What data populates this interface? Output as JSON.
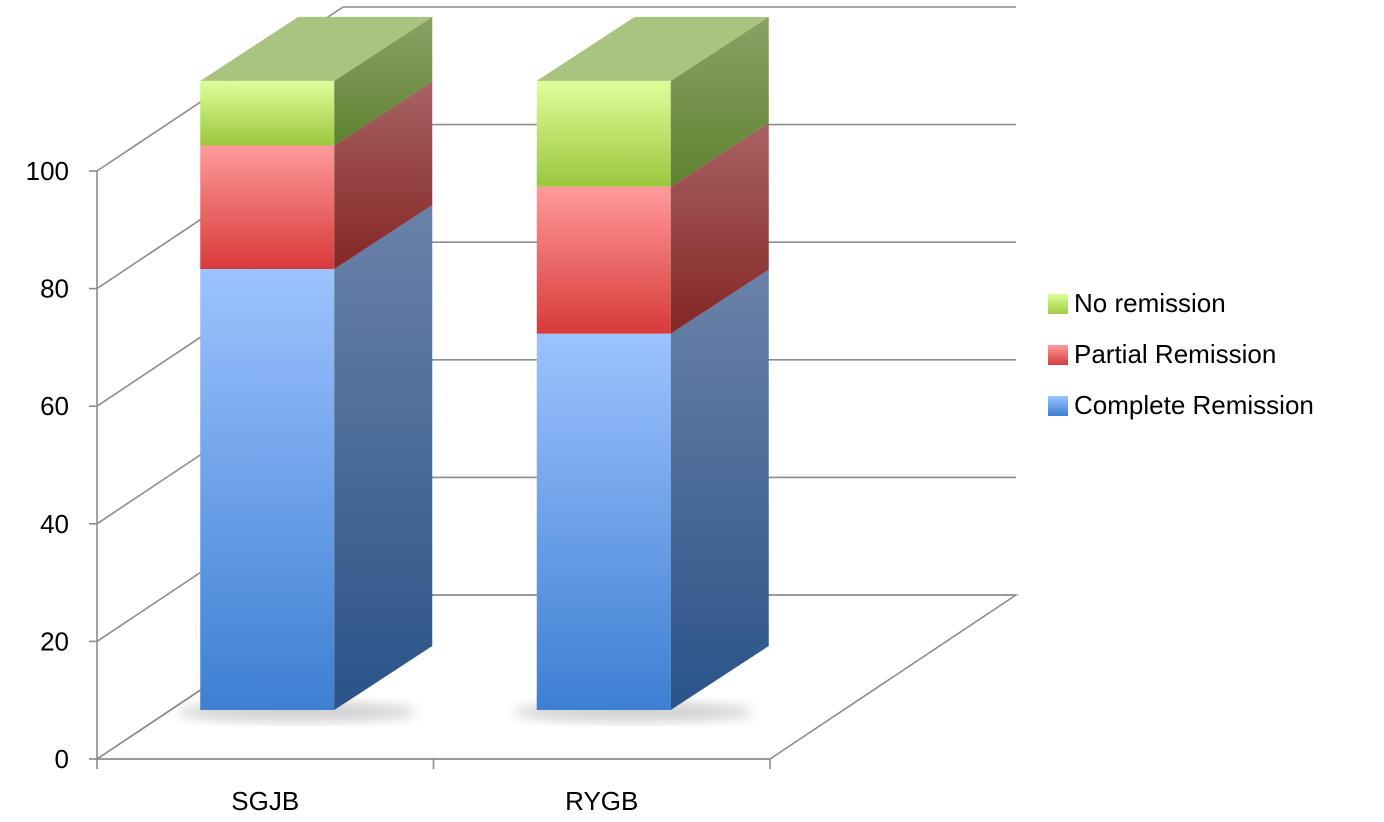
{
  "chart_data": {
    "type": "bar",
    "stacked": true,
    "three_d": true,
    "categories": [
      "SGJB",
      "RYGB"
    ],
    "series": [
      {
        "name": "Complete Remission",
        "values": [
          75,
          64
        ],
        "color": "#4a86d8"
      },
      {
        "name": "Partial Remission",
        "values": [
          21,
          25
        ],
        "color": "#e04848"
      },
      {
        "name": "No remission",
        "values": [
          11,
          18
        ],
        "color": "#a6d04c"
      }
    ],
    "ylim": [
      0,
      100
    ],
    "yticks": [
      0,
      20,
      40,
      60,
      80,
      100
    ],
    "title": "",
    "xlabel": "",
    "ylabel": "",
    "grid": true,
    "legend_position": "right"
  }
}
